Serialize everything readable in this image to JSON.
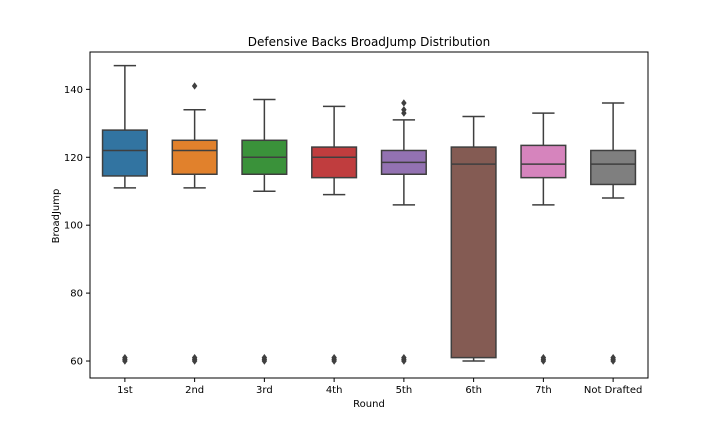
{
  "chart_data": {
    "type": "box",
    "title": "Defensive Backs BroadJump Distribution",
    "xlabel": "Round",
    "ylabel": "BroadJump",
    "ylim": [
      55,
      151
    ],
    "yticks": [
      60,
      80,
      100,
      120,
      140
    ],
    "grid": false,
    "categories": [
      "1st",
      "2nd",
      "3rd",
      "4th",
      "5th",
      "6th",
      "7th",
      "Not Drafted"
    ],
    "boxes": [
      {
        "category": "1st",
        "color": "#3274a1",
        "whisker_low": 111,
        "q1": 114.5,
        "median": 122,
        "q3": 128,
        "whisker_high": 147,
        "outliers": [
          60,
          60.5,
          61
        ]
      },
      {
        "category": "2nd",
        "color": "#e1812c",
        "whisker_low": 111,
        "q1": 115,
        "median": 122,
        "q3": 125,
        "whisker_high": 134,
        "outliers": [
          60,
          60.5,
          61,
          141
        ]
      },
      {
        "category": "3rd",
        "color": "#3a923a",
        "whisker_low": 110,
        "q1": 115,
        "median": 120,
        "q3": 125,
        "whisker_high": 137,
        "outliers": [
          60,
          60.5,
          61
        ]
      },
      {
        "category": "4th",
        "color": "#c03d3e",
        "whisker_low": 109,
        "q1": 114,
        "median": 120,
        "q3": 123,
        "whisker_high": 135,
        "outliers": [
          60,
          60.5,
          61
        ]
      },
      {
        "category": "5th",
        "color": "#9372b2",
        "whisker_low": 106,
        "q1": 115,
        "median": 118.5,
        "q3": 122,
        "whisker_high": 131,
        "outliers": [
          60,
          60.5,
          61,
          133,
          134,
          136
        ]
      },
      {
        "category": "6th",
        "color": "#845b53",
        "whisker_low": 60,
        "q1": 61,
        "median": 118,
        "q3": 123,
        "whisker_high": 132,
        "outliers": []
      },
      {
        "category": "7th",
        "color": "#d684bd",
        "whisker_low": 106,
        "q1": 114,
        "median": 118,
        "q3": 123.5,
        "whisker_high": 133,
        "outliers": [
          60,
          60.5,
          61
        ]
      },
      {
        "category": "Not Drafted",
        "color": "#7f7f7f",
        "whisker_low": 108,
        "q1": 112,
        "median": 118,
        "q3": 122,
        "whisker_high": 136,
        "outliers": [
          60,
          60.5,
          61
        ]
      }
    ]
  }
}
